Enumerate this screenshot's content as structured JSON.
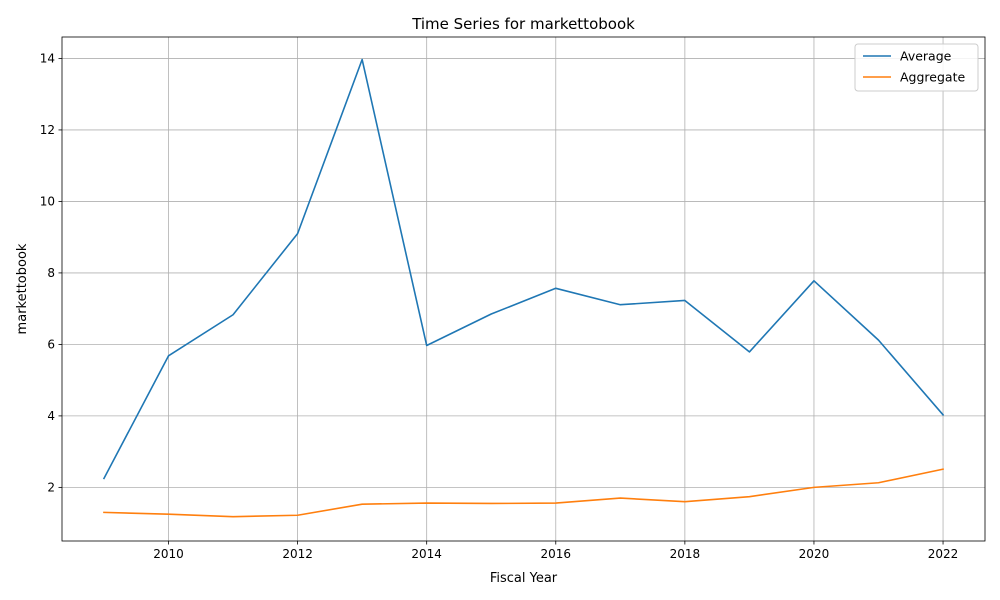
{
  "chart_data": {
    "type": "line",
    "title": "Time Series for markettobook",
    "xlabel": "Fiscal Year",
    "ylabel": "markettobook",
    "x": [
      2009,
      2010,
      2011,
      2012,
      2013,
      2014,
      2015,
      2016,
      2017,
      2018,
      2019,
      2020,
      2021,
      2022
    ],
    "xlim": [
      2008.35,
      2022.65
    ],
    "ylim": [
      0.5,
      14.6
    ],
    "x_ticks": [
      2010,
      2012,
      2014,
      2016,
      2018,
      2020,
      2022
    ],
    "y_ticks": [
      2,
      4,
      6,
      8,
      10,
      12,
      14
    ],
    "grid": true,
    "legend_position": "top-right",
    "series": [
      {
        "name": "Average",
        "color": "#1f77b4",
        "values": [
          2.25,
          5.68,
          6.83,
          9.1,
          13.97,
          5.97,
          6.85,
          7.57,
          7.11,
          7.23,
          5.79,
          7.78,
          6.12,
          4.03
        ]
      },
      {
        "name": "Aggregate",
        "color": "#ff7f0e",
        "values": [
          1.3,
          1.25,
          1.18,
          1.22,
          1.53,
          1.56,
          1.55,
          1.56,
          1.7,
          1.6,
          1.74,
          2.0,
          2.13,
          2.51
        ]
      }
    ]
  }
}
